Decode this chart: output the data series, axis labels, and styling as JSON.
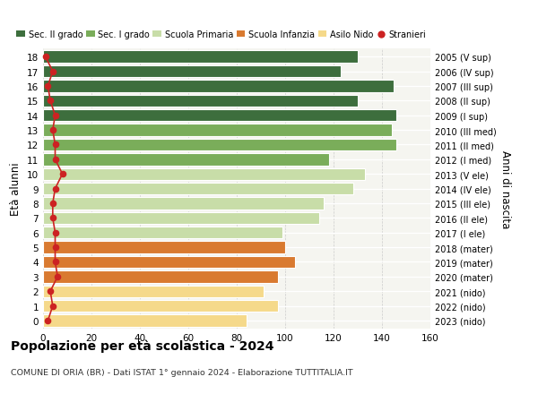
{
  "ages": [
    18,
    17,
    16,
    15,
    14,
    13,
    12,
    11,
    10,
    9,
    8,
    7,
    6,
    5,
    4,
    3,
    2,
    1,
    0
  ],
  "right_labels": [
    "2005 (V sup)",
    "2006 (IV sup)",
    "2007 (III sup)",
    "2008 (II sup)",
    "2009 (I sup)",
    "2010 (III med)",
    "2011 (II med)",
    "2012 (I med)",
    "2013 (V ele)",
    "2014 (IV ele)",
    "2015 (III ele)",
    "2016 (II ele)",
    "2017 (I ele)",
    "2018 (mater)",
    "2019 (mater)",
    "2020 (mater)",
    "2021 (nido)",
    "2022 (nido)",
    "2023 (nido)"
  ],
  "values": [
    130,
    123,
    145,
    130,
    146,
    144,
    146,
    118,
    133,
    128,
    116,
    114,
    99,
    100,
    104,
    97,
    91,
    97,
    84
  ],
  "stranieri": [
    1,
    4,
    2,
    3,
    5,
    4,
    5,
    5,
    8,
    5,
    4,
    4,
    5,
    5,
    5,
    6,
    3,
    4,
    2
  ],
  "colors": [
    "#3d6e3d",
    "#3d6e3d",
    "#3d6e3d",
    "#3d6e3d",
    "#3d6e3d",
    "#7aad5a",
    "#7aad5a",
    "#7aad5a",
    "#c8dda8",
    "#c8dda8",
    "#c8dda8",
    "#c8dda8",
    "#c8dda8",
    "#d97a30",
    "#d97a30",
    "#d97a30",
    "#f5d98a",
    "#f5d98a",
    "#f5d98a"
  ],
  "legend_labels": [
    "Sec. II grado",
    "Sec. I grado",
    "Scuola Primaria",
    "Scuola Infanzia",
    "Asilo Nido",
    "Stranieri"
  ],
  "legend_colors": [
    "#3d6e3d",
    "#7aad5a",
    "#c8dda8",
    "#d97a30",
    "#f5d98a",
    "#cc2222"
  ],
  "title": "Popolazione per età scolastica - 2024",
  "subtitle": "COMUNE DI ORIA (BR) - Dati ISTAT 1° gennaio 2024 - Elaborazione TUTTITALIA.IT",
  "ylabel_left": "Età alunni",
  "ylabel_right": "Anni di nascita",
  "xlim": [
    0,
    160
  ],
  "xticks": [
    0,
    20,
    40,
    60,
    80,
    100,
    120,
    140,
    160
  ],
  "stranieri_color": "#cc2222",
  "bg_color": "#f5f5f0",
  "bar_height": 0.82
}
